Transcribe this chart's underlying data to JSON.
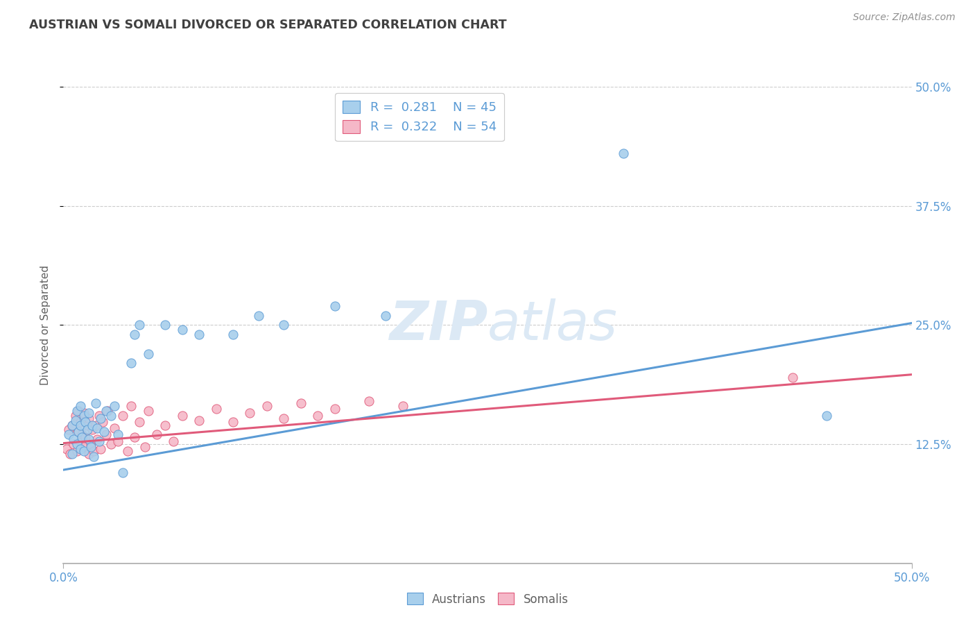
{
  "title": "AUSTRIAN VS SOMALI DIVORCED OR SEPARATED CORRELATION CHART",
  "source": "Source: ZipAtlas.com",
  "ylabel": "Divorced or Separated",
  "xlim": [
    0.0,
    0.5
  ],
  "ylim": [
    0.0,
    0.5
  ],
  "blue_color": "#A8CFEC",
  "pink_color": "#F5B8C8",
  "blue_line_color": "#5B9BD5",
  "pink_line_color": "#E05A7A",
  "title_color": "#404040",
  "axis_label_color": "#606060",
  "tick_label_color": "#5B9BD5",
  "watermark_color": "#DCE9F5",
  "legend_text_color": "#5B9BD5",
  "bottom_legend_color": "#606060",
  "source_color": "#909090",
  "blue_line_start_y": 0.098,
  "blue_line_end_y": 0.252,
  "pink_line_start_y": 0.126,
  "pink_line_end_y": 0.198,
  "austrian_x": [
    0.003,
    0.005,
    0.005,
    0.006,
    0.007,
    0.008,
    0.008,
    0.009,
    0.01,
    0.01,
    0.01,
    0.011,
    0.012,
    0.012,
    0.013,
    0.014,
    0.015,
    0.015,
    0.016,
    0.017,
    0.018,
    0.019,
    0.02,
    0.021,
    0.022,
    0.024,
    0.025,
    0.028,
    0.03,
    0.032,
    0.035,
    0.04,
    0.042,
    0.045,
    0.05,
    0.06,
    0.07,
    0.08,
    0.1,
    0.115,
    0.13,
    0.16,
    0.19,
    0.33,
    0.45
  ],
  "austrian_y": [
    0.135,
    0.115,
    0.145,
    0.13,
    0.15,
    0.125,
    0.16,
    0.138,
    0.12,
    0.145,
    0.165,
    0.132,
    0.155,
    0.118,
    0.148,
    0.14,
    0.13,
    0.158,
    0.122,
    0.145,
    0.112,
    0.168,
    0.142,
    0.128,
    0.152,
    0.138,
    0.16,
    0.155,
    0.165,
    0.135,
    0.095,
    0.21,
    0.24,
    0.25,
    0.22,
    0.25,
    0.245,
    0.24,
    0.24,
    0.26,
    0.25,
    0.27,
    0.26,
    0.43,
    0.155
  ],
  "somali_x": [
    0.002,
    0.003,
    0.004,
    0.005,
    0.006,
    0.007,
    0.008,
    0.009,
    0.009,
    0.01,
    0.01,
    0.011,
    0.012,
    0.012,
    0.013,
    0.014,
    0.015,
    0.015,
    0.016,
    0.017,
    0.018,
    0.019,
    0.02,
    0.021,
    0.022,
    0.023,
    0.025,
    0.026,
    0.028,
    0.03,
    0.032,
    0.035,
    0.038,
    0.04,
    0.042,
    0.045,
    0.048,
    0.05,
    0.055,
    0.06,
    0.065,
    0.07,
    0.08,
    0.09,
    0.1,
    0.11,
    0.12,
    0.13,
    0.14,
    0.15,
    0.16,
    0.18,
    0.2,
    0.43
  ],
  "somali_y": [
    0.12,
    0.14,
    0.115,
    0.145,
    0.125,
    0.155,
    0.118,
    0.138,
    0.16,
    0.128,
    0.148,
    0.135,
    0.122,
    0.158,
    0.132,
    0.145,
    0.115,
    0.152,
    0.125,
    0.14,
    0.118,
    0.145,
    0.13,
    0.155,
    0.12,
    0.148,
    0.135,
    0.16,
    0.125,
    0.142,
    0.128,
    0.155,
    0.118,
    0.165,
    0.132,
    0.148,
    0.122,
    0.16,
    0.135,
    0.145,
    0.128,
    0.155,
    0.15,
    0.162,
    0.148,
    0.158,
    0.165,
    0.152,
    0.168,
    0.155,
    0.162,
    0.17,
    0.165,
    0.195
  ]
}
